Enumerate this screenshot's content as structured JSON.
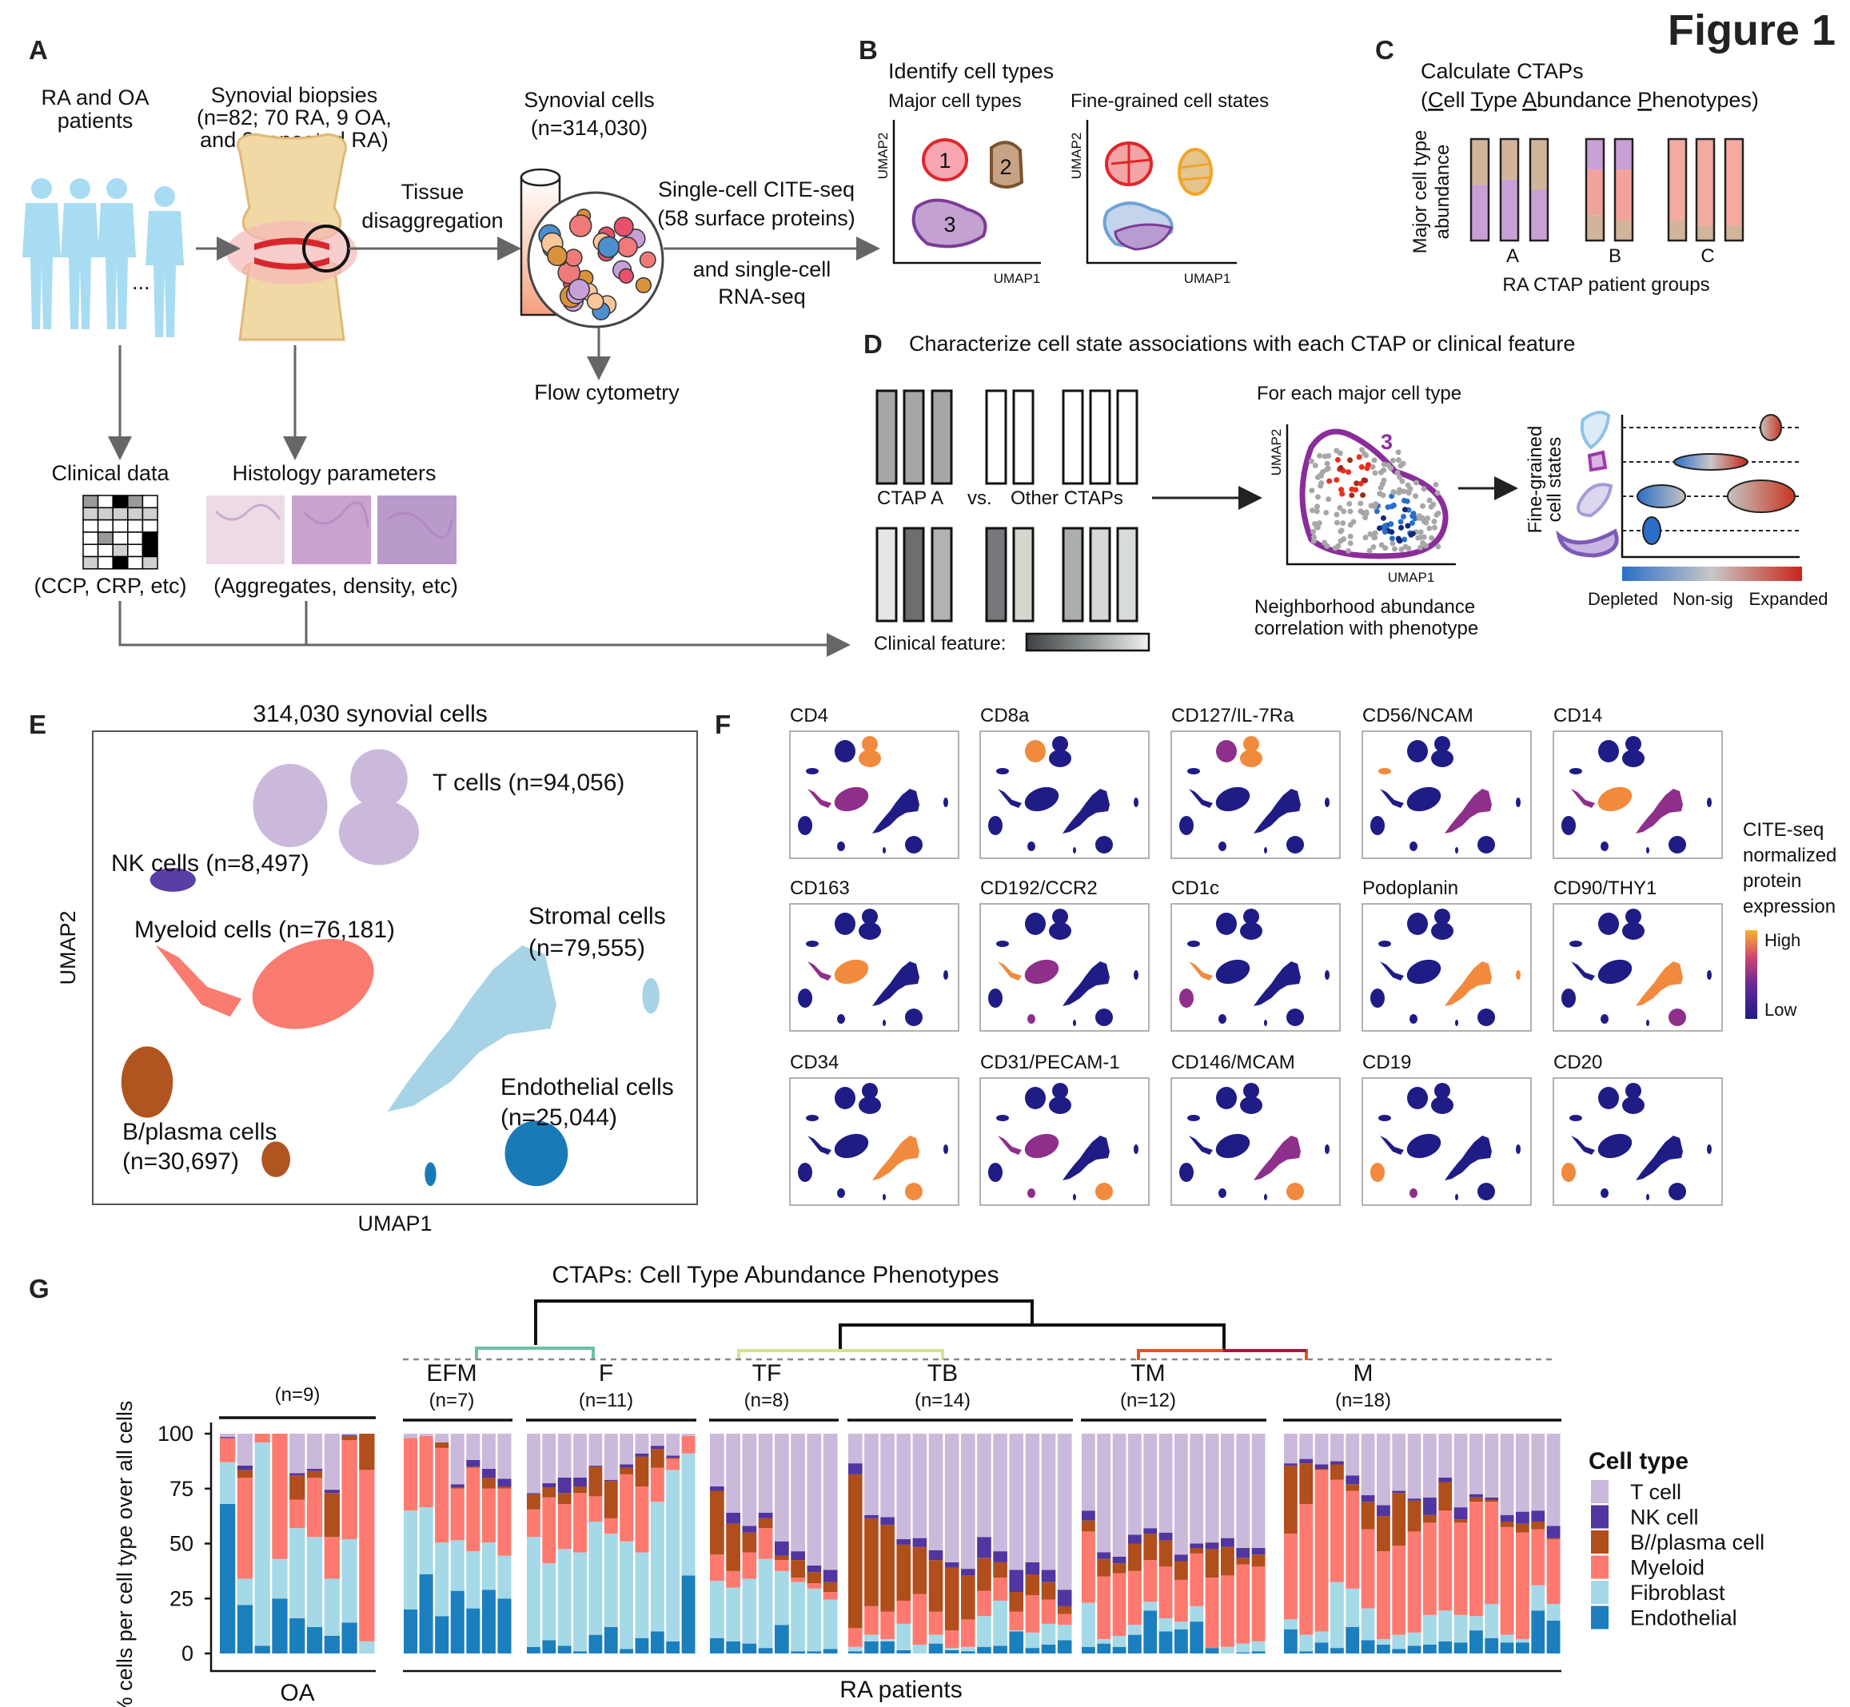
{
  "figure_label": "Figure 1",
  "panel_a": {
    "label": "A",
    "patients_label": [
      "RA and OA",
      "patients"
    ],
    "ellipsis": "...",
    "biopsies_label": [
      "Synovial biopsies",
      "(n=82; 70 RA, 9 OA,",
      "and 3 repeated RA)"
    ],
    "tissue_label": [
      "Tissue",
      "disaggregation"
    ],
    "cells_label": [
      "Synovial cells",
      "(n=314,030)"
    ],
    "citeseq_label": [
      "Single-cell CITE-seq",
      "(58 surface proteins)"
    ],
    "rnaseq_label": [
      "and single-cell",
      "RNA-seq"
    ],
    "flow_label": "Flow cytometry",
    "clinical_title": "Clinical data",
    "clinical_sub": "(CCP, CRP, etc)",
    "histology_title": "Histology parameters",
    "histology_sub": "(Aggregates, density, etc)"
  },
  "panel_b": {
    "label": "B",
    "title": "Identify cell types",
    "major_label": "Major cell types",
    "fine_label": "Fine-grained cell states",
    "umap1": "UMAP1",
    "umap2": "UMAP2",
    "clusters": [
      "1",
      "2",
      "3"
    ]
  },
  "panel_c": {
    "label": "C",
    "title": "Calculate CTAPs",
    "subtitle_parts": [
      "(",
      "C",
      "ell ",
      "T",
      "ype ",
      "A",
      "bundance ",
      "P",
      "henotypes)"
    ],
    "ylabel": [
      "Major cell type",
      "abundance"
    ],
    "groups": [
      "A",
      "B",
      "C"
    ],
    "xlabel": "RA CTAP patient groups"
  },
  "panel_d": {
    "label": "D",
    "title": "Characterize cell state associations with each CTAP or clinical feature",
    "ctap_a": "CTAP A",
    "vs": "vs.",
    "other_ctaps": "Other CTAPs",
    "clinical_feature": "Clinical feature:",
    "for_each": "For each major cell type",
    "cluster": "3",
    "umap1": "UMAP1",
    "umap2": "UMAP2",
    "caption": [
      "Neighborhood abundance",
      "correlation with phenotype"
    ],
    "fine_label": [
      "Fine-grained",
      "cell states"
    ],
    "scale_labels": [
      "Depleted",
      "Non-sig",
      "Expanded"
    ]
  },
  "panel_e": {
    "label": "E",
    "title": "314,030 synovial cells",
    "xlabel": "UMAP1",
    "ylabel": "UMAP2",
    "labels": {
      "t": "T cells (n=94,056)",
      "nk": "NK cells (n=8,497)",
      "myeloid": "Myeloid cells (n=76,181)",
      "stromal": [
        "Stromal cells",
        "(n=79,555)"
      ],
      "endothelial": [
        "Endothelial cells",
        "(n=25,044)"
      ],
      "b": [
        "B/plasma cells",
        "(n=30,697)"
      ]
    },
    "colors": {
      "t": "#cbb9dc",
      "nk": "#5a3ea8",
      "myeloid": "#fa7b6f",
      "stromal": "#a7d3e6",
      "b": "#b0551f",
      "endothelial": "#1a7ab8"
    }
  },
  "panel_f": {
    "label": "F",
    "markers": [
      {
        "name": "CD4",
        "high": {
          "T_right": "high",
          "MyeArm": "mid",
          "Mye": "mid"
        }
      },
      {
        "name": "CD8a",
        "high": {
          "T_left": "high"
        }
      },
      {
        "name": "CD127/IL-7Ra",
        "high": {
          "T_left": "mid",
          "T_right": "high"
        }
      },
      {
        "name": "CD56/NCAM",
        "high": {
          "NK": "high",
          "Stromal": "mid"
        }
      },
      {
        "name": "CD14",
        "high": {
          "Mye": "high",
          "MyeArm": "mid",
          "Stromal": "mid"
        }
      },
      {
        "name": "CD163",
        "high": {
          "Mye": "high",
          "MyeArm": "mid"
        }
      },
      {
        "name": "CD192/CCR2",
        "high": {
          "Mye": "mid",
          "MyeArm": "high",
          "B2": "mid"
        }
      },
      {
        "name": "CD1c",
        "high": {
          "MyeArm": "high",
          "B": "mid"
        }
      },
      {
        "name": "Podoplanin",
        "high": {
          "Stromal": "high",
          "StromalSmall": "high"
        }
      },
      {
        "name": "CD90/THY1",
        "high": {
          "Stromal": "high",
          "Endo": "mid"
        }
      },
      {
        "name": "CD34",
        "high": {
          "Stromal": "high",
          "Endo": "high"
        }
      },
      {
        "name": "CD31/PECAM-1",
        "high": {
          "Mye": "mid",
          "MyeArm": "mid",
          "Endo": "high",
          "B2": "mid"
        }
      },
      {
        "name": "CD146/MCAM",
        "high": {
          "Endo": "high",
          "Stromal": "mid"
        }
      },
      {
        "name": "CD19",
        "high": {
          "B": "high",
          "B2": "mid"
        }
      },
      {
        "name": "CD20",
        "high": {
          "B": "high"
        }
      }
    ],
    "legend_title": [
      "CITE-seq",
      "normalized",
      "protein",
      "expression"
    ],
    "legend_high": "High",
    "legend_low": "Low",
    "colors": {
      "low": "#1f1c86",
      "mid": "#8e2f8c",
      "high": "#f18a3d"
    }
  },
  "chart_data": {
    "type": "bar",
    "stacked": true,
    "panel_label": "G",
    "title": "CTAPs: Cell Type Abundance Phenotypes",
    "ylabel": "% cells per cell type over all cells",
    "ylim": [
      0,
      100
    ],
    "yticks": [
      "100",
      "75",
      "50",
      "25",
      "0"
    ],
    "legend_title": "Cell type",
    "legend_position": "right",
    "series_names": [
      "Endothelial",
      "Fibroblast",
      "Myeloid",
      "B//plasma cell",
      "NK cell",
      "T cell"
    ],
    "legend_order": [
      "T cell",
      "NK cell",
      "B//plasma cell",
      "Myeloid",
      "Fibroblast",
      "Endothelial"
    ],
    "colors": {
      "T cell": "#cbb9dc",
      "NK cell": "#5135a0",
      "B//plasma cell": "#b04e1c",
      "Myeloid": "#fe7a70",
      "Fibroblast": "#a5d9e8",
      "Endothelial": "#1b7fbe"
    },
    "x_group_labels": {
      "oa": "OA",
      "ra": "RA patients"
    },
    "groups": [
      {
        "name": "",
        "n": "(n=9)",
        "bars": [
          [
            68,
            19,
            11,
            0,
            0.5,
            1.5
          ],
          [
            22,
            12,
            46,
            3.5,
            2,
            14.5
          ],
          [
            3.5,
            92.5,
            4,
            0,
            0,
            0
          ],
          [
            25,
            18,
            57,
            0,
            0,
            0
          ],
          [
            16,
            41,
            13,
            11,
            1,
            18
          ],
          [
            12,
            41,
            27,
            3,
            1,
            16
          ],
          [
            8,
            26,
            19,
            20,
            1.5,
            25.5
          ],
          [
            14,
            38,
            45,
            2,
            0.5,
            0.5
          ],
          [
            0,
            5.5,
            78,
            16.5,
            0,
            0
          ]
        ]
      },
      {
        "name": "EFM",
        "n": "(n=7)",
        "bars": [
          [
            20,
            45,
            33,
            0,
            0,
            2
          ],
          [
            36,
            30.5,
            32.5,
            0,
            0,
            1
          ],
          [
            17,
            33.5,
            43,
            2.5,
            0,
            4
          ],
          [
            28.5,
            23,
            23.5,
            0.5,
            1.5,
            23
          ],
          [
            20.5,
            26,
            38,
            0.5,
            3,
            12
          ],
          [
            29,
            21.5,
            24.5,
            5,
            4,
            16
          ],
          [
            25,
            19.5,
            30.5,
            1,
            3.5,
            20.5
          ]
        ]
      },
      {
        "name": "F",
        "n": "(n=11)",
        "bars": [
          [
            3,
            50,
            12.5,
            7,
            0.5,
            27
          ],
          [
            6,
            35,
            30,
            4.5,
            2,
            22.5
          ],
          [
            3.5,
            44,
            20.5,
            5,
            7,
            20
          ],
          [
            1,
            45,
            27,
            3,
            4,
            20
          ],
          [
            8.5,
            51.5,
            11.5,
            13.5,
            0.5,
            14.5
          ],
          [
            12,
            42.5,
            7,
            17,
            0.5,
            21
          ],
          [
            2,
            49,
            30.5,
            3,
            1.5,
            14
          ],
          [
            7,
            39,
            30,
            13.5,
            1.5,
            9
          ],
          [
            10,
            59,
            15.5,
            8.5,
            1.5,
            5.5
          ],
          [
            5.5,
            78,
            5,
            0.5,
            1,
            10
          ],
          [
            35.5,
            55.5,
            8,
            0,
            0,
            1
          ]
        ]
      },
      {
        "name": "TF",
        "n": "(n=8)",
        "bars": [
          [
            7,
            26,
            12,
            29,
            2,
            24
          ],
          [
            5.5,
            24.5,
            7.5,
            21.5,
            5,
            36
          ],
          [
            4.5,
            29.5,
            12,
            9,
            3,
            42
          ],
          [
            2.5,
            40.5,
            14,
            4.5,
            2.5,
            36
          ],
          [
            13,
            24.5,
            5,
            2,
            6.5,
            49
          ],
          [
            1,
            31.5,
            2,
            8,
            4,
            53.5
          ],
          [
            1,
            28.5,
            2.5,
            5,
            3,
            60
          ],
          [
            2,
            22.5,
            3.5,
            4.5,
            5.5,
            62
          ]
        ]
      },
      {
        "name": "TB",
        "n": "(n=14)",
        "bars": [
          [
            1,
            2,
            8.5,
            70,
            5,
            13.5
          ],
          [
            5.5,
            3,
            13,
            40,
            1.5,
            37
          ],
          [
            5.5,
            1,
            12.5,
            39.5,
            3.5,
            38
          ],
          [
            1.5,
            12,
            10.5,
            25.5,
            2.5,
            48
          ],
          [
            0,
            4,
            23,
            21.5,
            4,
            47.5
          ],
          [
            4.5,
            4,
            10.5,
            23.5,
            4.5,
            53
          ],
          [
            1.5,
            1,
            8,
            28.5,
            2.5,
            58.5
          ],
          [
            1,
            2,
            12.5,
            20,
            3,
            61.5
          ],
          [
            3,
            14,
            11.5,
            15,
            9.5,
            47
          ],
          [
            3.5,
            20.5,
            10.5,
            7,
            5,
            53.5
          ],
          [
            10,
            0.5,
            8.5,
            9,
            10,
            62
          ],
          [
            2.5,
            7,
            17,
            9.5,
            5.5,
            58.5
          ],
          [
            4,
            9.5,
            11,
            8,
            5.5,
            62
          ],
          [
            6,
            7,
            5,
            3.5,
            7.5,
            71
          ]
        ]
      },
      {
        "name": "TM",
        "n": "(n=12)",
        "bars": [
          [
            3,
            20,
            32.5,
            5,
            4.5,
            35
          ],
          [
            4.5,
            2,
            28.5,
            8,
            3,
            54
          ],
          [
            3,
            5,
            28.5,
            4.5,
            3,
            56
          ],
          [
            8.5,
            4.5,
            24.5,
            12.5,
            4,
            46
          ],
          [
            19.5,
            4,
            19,
            12,
            2.5,
            43
          ],
          [
            10,
            6,
            23.5,
            12,
            3.5,
            45
          ],
          [
            11,
            3.5,
            19,
            8.5,
            3,
            55
          ],
          [
            14.5,
            7,
            24,
            2.5,
            2,
            50
          ],
          [
            2.5,
            0,
            32,
            13,
            3,
            49.5
          ],
          [
            0,
            3,
            32.5,
            13,
            4,
            47.5
          ],
          [
            0.5,
            4,
            36,
            3,
            4.5,
            52
          ],
          [
            1,
            4.5,
            34,
            5.5,
            3,
            52
          ]
        ]
      },
      {
        "name": "M",
        "n": "(n=18)",
        "bars": [
          [
            11,
            4.5,
            39,
            31,
            1,
            13.5
          ],
          [
            1,
            7.5,
            59.5,
            18.5,
            2,
            11.5
          ],
          [
            5,
            5,
            73.5,
            0.5,
            2,
            14
          ],
          [
            2.5,
            30,
            46.5,
            7,
            1.5,
            12.5
          ],
          [
            12,
            17.5,
            44.5,
            3,
            4,
            19
          ],
          [
            6,
            14.5,
            36,
            12.5,
            3,
            28
          ],
          [
            4,
            2.5,
            40,
            16,
            5,
            32.5
          ],
          [
            2,
            6.5,
            40.5,
            24,
            1,
            26
          ],
          [
            3.5,
            6,
            46,
            14,
            1,
            29.5
          ],
          [
            4,
            13.5,
            42,
            3.5,
            8,
            29
          ],
          [
            5.5,
            14,
            45.5,
            13,
            2,
            20
          ],
          [
            5,
            12.5,
            42,
            1.5,
            5.5,
            33.5
          ],
          [
            10.5,
            6.5,
            52,
            2,
            1.5,
            27.5
          ],
          [
            7,
            15.5,
            46.5,
            1,
            1,
            29
          ],
          [
            5,
            3.5,
            49,
            2.5,
            3,
            37
          ],
          [
            5,
            1.5,
            48.5,
            4,
            5.5,
            35.5
          ],
          [
            19.5,
            11.5,
            25.5,
            3.5,
            5,
            35
          ],
          [
            15,
            7.5,
            29.5,
            0.5,
            5.5,
            42
          ]
        ]
      }
    ]
  }
}
